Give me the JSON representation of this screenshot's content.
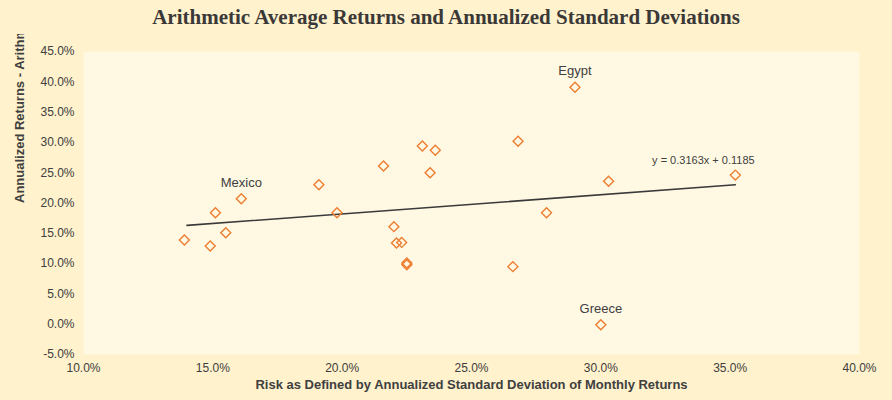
{
  "chart_data": {
    "type": "scatter",
    "title": "Arithmetic Average Returns and Annualized Standard Deviations",
    "x_label": "Risk as Defined by Annualized Standard Deviation of Monthly Returns",
    "y_label": "Annualized Returns - Arithmetic",
    "x": [
      13.9,
      14.9,
      15.1,
      15.5,
      16.1,
      19.1,
      19.8,
      21.6,
      22.0,
      22.1,
      22.3,
      22.5,
      22.5,
      23.1,
      23.4,
      23.6,
      26.6,
      26.8,
      27.9,
      29.0,
      30.0,
      30.3,
      35.2
    ],
    "y": [
      13.9,
      12.9,
      18.4,
      15.1,
      20.7,
      23.0,
      18.4,
      26.1,
      16.1,
      13.4,
      13.5,
      10.1,
      9.8,
      29.4,
      25.0,
      28.7,
      9.5,
      30.2,
      18.4,
      39.1,
      -0.1,
      23.6,
      24.6
    ],
    "point_labels": [
      null,
      null,
      null,
      null,
      "Mexico",
      null,
      null,
      null,
      null,
      null,
      null,
      null,
      null,
      null,
      null,
      null,
      null,
      null,
      null,
      "Egypt",
      "Greece",
      null,
      null
    ],
    "color": "#ED7D31",
    "marker": "diamond",
    "trendline": {
      "x": [
        14.0,
        35.2
      ],
      "y": [
        16.3,
        23.0
      ],
      "label": "y = 0.3163x + 0.1185"
    },
    "xlim": [
      10,
      40
    ],
    "ylim": [
      -5,
      45
    ],
    "xticks": [
      {
        "value": 10,
        "label": "10.0%"
      },
      {
        "value": 15,
        "label": "15.0%"
      },
      {
        "value": 20,
        "label": "20.0%"
      },
      {
        "value": 25,
        "label": "25.0%"
      },
      {
        "value": 30,
        "label": "30.0%"
      },
      {
        "value": 35,
        "label": "35.0%"
      },
      {
        "value": 40,
        "label": "40.0%"
      }
    ],
    "yticks": [
      {
        "value": -5,
        "label": "-5.0%"
      },
      {
        "value": 0,
        "label": "0.0%"
      },
      {
        "value": 5,
        "label": "5.0%"
      },
      {
        "value": 10,
        "label": "10.0%"
      },
      {
        "value": 15,
        "label": "15.0%"
      },
      {
        "value": 20,
        "label": "20.0%"
      },
      {
        "value": 25,
        "label": "25.0%"
      },
      {
        "value": 30,
        "label": "30.0%"
      },
      {
        "value": 35,
        "label": "35.0%"
      },
      {
        "value": 40,
        "label": "40.0%"
      },
      {
        "value": 45,
        "label": "45.0%"
      }
    ],
    "grid": false
  }
}
